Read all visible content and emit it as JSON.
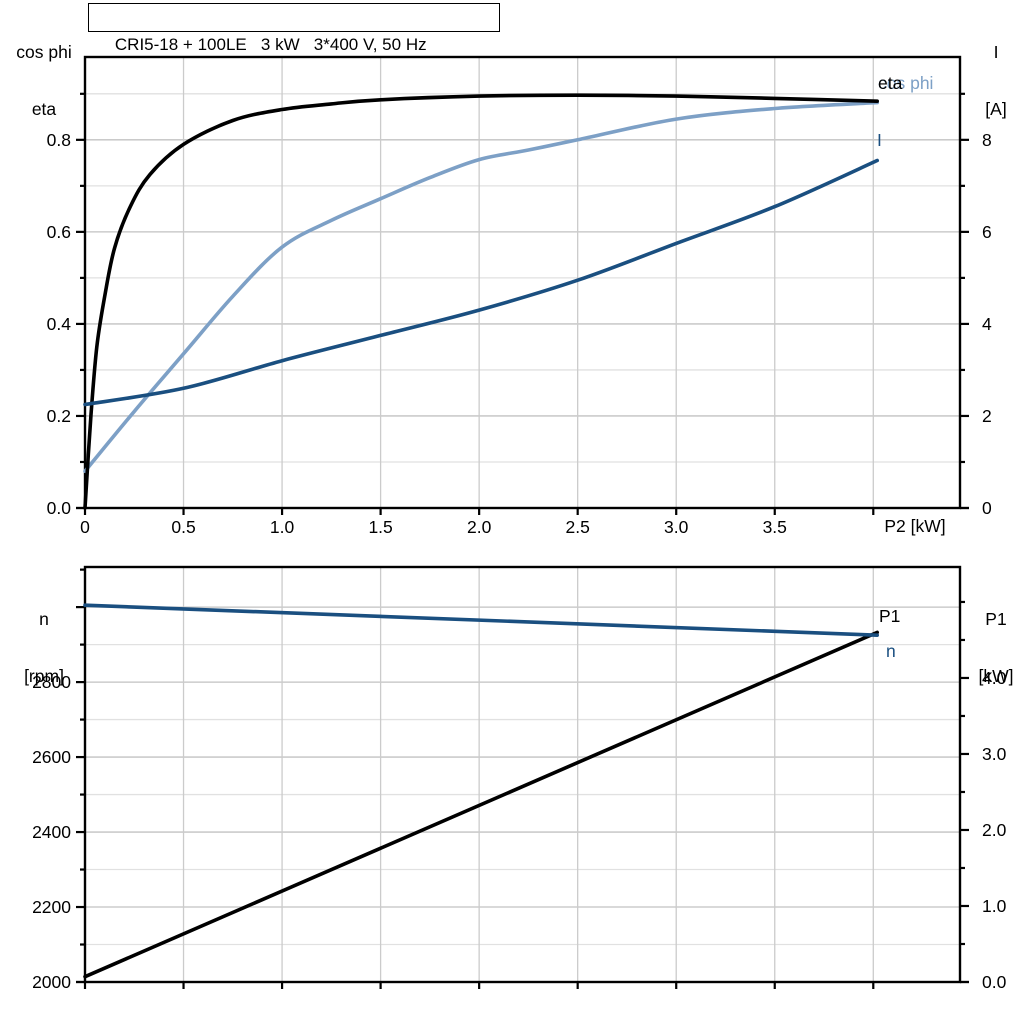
{
  "header": {
    "title": "CRI5-18 + 100LE   3 kW   3*400 V, 50 Hz"
  },
  "colors": {
    "eta": "#000000",
    "cos_phi": "#7da0c6",
    "current": "#1a4f80",
    "speed": "#1a4f80",
    "p1": "#000000",
    "grid_major": "#c2c2c2",
    "grid_minor": "#e1e1e1",
    "grid_vertical": "#cbcbcb",
    "axis": "#000000"
  },
  "chart_data": [
    {
      "id": "motor-electrical-curves",
      "type": "line",
      "title": "CRI5-18 + 100LE   3 kW   3*400 V, 50 Hz",
      "x_axis": {
        "label": "P2 [kW]",
        "range": [
          0,
          4.44
        ],
        "grid_step": 0.5,
        "major_ticks": [
          0,
          0.5,
          1.0,
          1.5,
          2.0,
          2.5,
          3.0,
          3.5
        ],
        "tick_labels": [
          "0",
          "0.5",
          "1.0",
          "1.5",
          "2.0",
          "2.5",
          "3.0",
          "3.5"
        ],
        "extra_ticks": [
          4.0
        ]
      },
      "left_axis": {
        "label_lines": [
          "cos phi",
          "eta"
        ],
        "range": [
          0,
          0.98
        ],
        "major_step": 0.2,
        "minor_step": 0.1,
        "major_ticks": [
          0,
          0.2,
          0.4,
          0.6,
          0.8
        ],
        "tick_labels": [
          "0.0",
          "0.2",
          "0.4",
          "0.6",
          "0.8"
        ],
        "extra_ticks": []
      },
      "right_axis": {
        "label_lines": [
          "I",
          "[A]"
        ],
        "range": [
          0,
          9.8
        ],
        "major_step": 2,
        "minor_step": 1,
        "major_ticks": [
          0,
          2,
          4,
          6,
          8
        ],
        "tick_labels": [
          "0",
          "2",
          "4",
          "6",
          "8"
        ],
        "extra_ticks": []
      },
      "series": [
        {
          "name": "cos phi",
          "label": "cos phi",
          "axis": "left",
          "color_key": "cos_phi",
          "smooth": true,
          "points": [
            [
              0,
              0.08
            ],
            [
              0.25,
              0.21
            ],
            [
              0.5,
              0.335
            ],
            [
              0.75,
              0.46
            ],
            [
              1.0,
              0.567
            ],
            [
              1.25,
              0.625
            ],
            [
              1.5,
              0.672
            ],
            [
              1.75,
              0.718
            ],
            [
              2.0,
              0.757
            ],
            [
              2.25,
              0.778
            ],
            [
              2.5,
              0.8
            ],
            [
              3.0,
              0.845
            ],
            [
              3.5,
              0.868
            ],
            [
              4.02,
              0.881
            ]
          ]
        },
        {
          "name": "eta",
          "label": "eta",
          "axis": "left",
          "color_key": "eta",
          "smooth": true,
          "points": [
            [
              0,
              0
            ],
            [
              0.03,
              0.2
            ],
            [
              0.06,
              0.35
            ],
            [
              0.1,
              0.46
            ],
            [
              0.15,
              0.565
            ],
            [
              0.23,
              0.655
            ],
            [
              0.33,
              0.725
            ],
            [
              0.5,
              0.79
            ],
            [
              0.75,
              0.842
            ],
            [
              1.0,
              0.866
            ],
            [
              1.25,
              0.878
            ],
            [
              1.5,
              0.887
            ],
            [
              2.0,
              0.895
            ],
            [
              2.5,
              0.897
            ],
            [
              3.0,
              0.895
            ],
            [
              3.5,
              0.89
            ],
            [
              4.02,
              0.884
            ]
          ]
        },
        {
          "name": "I",
          "label": "I",
          "axis": "right",
          "color_key": "current",
          "smooth": true,
          "points": [
            [
              0,
              2.25
            ],
            [
              0.5,
              2.6
            ],
            [
              1.0,
              3.2
            ],
            [
              1.5,
              3.75
            ],
            [
              2.0,
              4.3
            ],
            [
              2.5,
              4.95
            ],
            [
              3.0,
              5.75
            ],
            [
              3.5,
              6.55
            ],
            [
              4.02,
              7.55
            ]
          ]
        }
      ]
    },
    {
      "id": "speed-power-curves",
      "type": "line",
      "title": "",
      "x_axis": {
        "label": "",
        "range": [
          0,
          4.44
        ],
        "grid_step": 0.5,
        "major_ticks": [
          0,
          0.5,
          1.0,
          1.5,
          2.0,
          2.5,
          3.0,
          3.5,
          4.0
        ],
        "tick_labels": [],
        "extra_ticks": []
      },
      "left_axis": {
        "label_lines": [
          "n",
          "[rpm]"
        ],
        "range": [
          2000,
          3107
        ],
        "major_step": 200,
        "minor_step": 100,
        "major_ticks": [
          2000,
          2200,
          2400,
          2600,
          2800
        ],
        "tick_labels": [
          "2000",
          "2200",
          "2400",
          "2600",
          "2800"
        ],
        "extra_ticks": [
          3000
        ]
      },
      "right_axis": {
        "label_lines": [
          "P1",
          "[kW]"
        ],
        "range": [
          0,
          5.46
        ],
        "major_step": 1,
        "minor_step": 0.5,
        "major_ticks": [
          0,
          1,
          2,
          3,
          4
        ],
        "tick_labels": [
          "0.0",
          "1.0",
          "2.0",
          "3.0",
          "4.0"
        ],
        "extra_ticks": []
      },
      "series": [
        {
          "name": "P1",
          "label": "P1",
          "axis": "right",
          "color_key": "p1",
          "smooth": false,
          "points": [
            [
              0,
              0.07
            ],
            [
              4.02,
              4.6
            ]
          ]
        },
        {
          "name": "n",
          "label": "n",
          "axis": "left",
          "color_key": "speed",
          "smooth": false,
          "points": [
            [
              0,
              3005
            ],
            [
              4.02,
              2925
            ]
          ]
        }
      ]
    }
  ]
}
